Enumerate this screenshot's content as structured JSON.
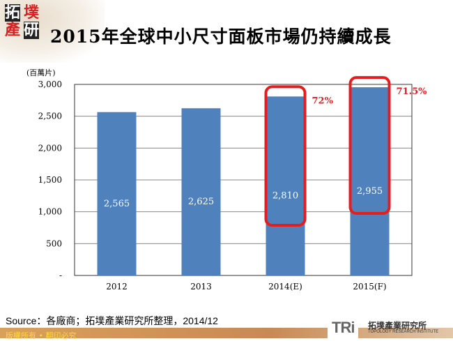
{
  "logo": {
    "chars": [
      "拓",
      "墣",
      "產",
      "研"
    ]
  },
  "title": "2015年全球中小尺寸面板市場仍持續成長",
  "unit": "(百萬片)",
  "chart_data": {
    "type": "bar",
    "categories": [
      "2012",
      "2013",
      "2014(E)",
      "2015(F)"
    ],
    "values": [
      2565,
      2625,
      2810,
      2955
    ],
    "data_labels": [
      "2,565",
      "2,625",
      "2,810",
      "2,955"
    ],
    "ylim": [
      0,
      3000
    ],
    "yticks": [
      "-",
      "500",
      "1,000",
      "1,500",
      "2,000",
      "2,500",
      "3,000"
    ],
    "ytick_values": [
      0,
      500,
      1000,
      1500,
      2000,
      2500,
      3000
    ],
    "ylabel": "(百萬片)",
    "bar_color": "#4f81bd",
    "highlight_color": "#e41e1e",
    "annotations": [
      {
        "category": "2014(E)",
        "text": "72%"
      },
      {
        "category": "2015(F)",
        "text": "71.5%"
      }
    ],
    "grid": true
  },
  "source": "Source：各廠商；拓墣產業研究所整理，2014/12",
  "footer": "版權所有 • 翻印必究",
  "tri": {
    "mark": "TRi",
    "cn": "拓墣產業研究所",
    "en": "TOPOLOGY RESEARCH INSTITUTE"
  }
}
